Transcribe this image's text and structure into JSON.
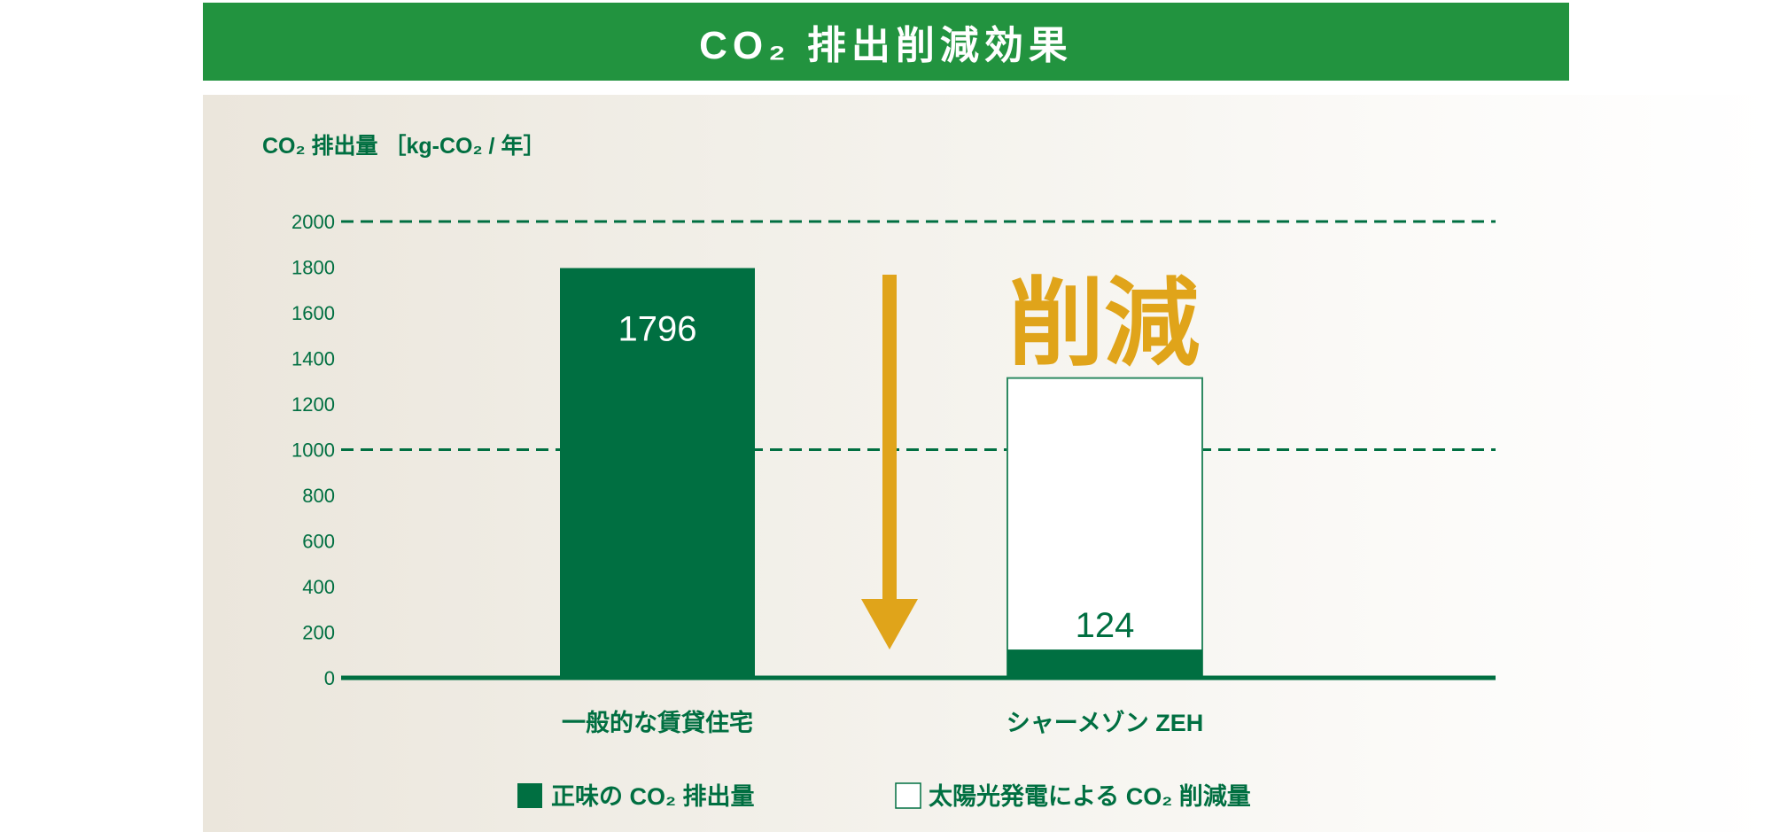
{
  "header": {
    "title": "CO₂ 排出削減効果"
  },
  "chart_data": {
    "type": "bar",
    "stacked": true,
    "ylabel": "CO₂ 排出量 ［kg-CO₂ / 年］",
    "ylim": [
      0,
      2000
    ],
    "yticks": [
      0,
      200,
      400,
      600,
      800,
      1000,
      1200,
      1400,
      1600,
      1800,
      2000
    ],
    "grid_lines": [
      1000,
      2000
    ],
    "categories": [
      "一般的な賃貸住宅",
      "シャーメゾン ZEH"
    ],
    "series": [
      {
        "name": "正味の CO₂ 排出量",
        "values": [
          1796,
          124
        ],
        "color": "#006f41",
        "labels": [
          "1796",
          "124"
        ]
      },
      {
        "name": "太陽光発電による CO₂ 削減量",
        "values": [
          0,
          1190
        ],
        "color": "#ffffff"
      }
    ],
    "annotation": {
      "text": "削減",
      "color": "#e0a41a"
    },
    "legend_position": "bottom"
  },
  "colors": {
    "header": "#22933f",
    "dark_green": "#006f41",
    "accent": "#e0a41a"
  }
}
